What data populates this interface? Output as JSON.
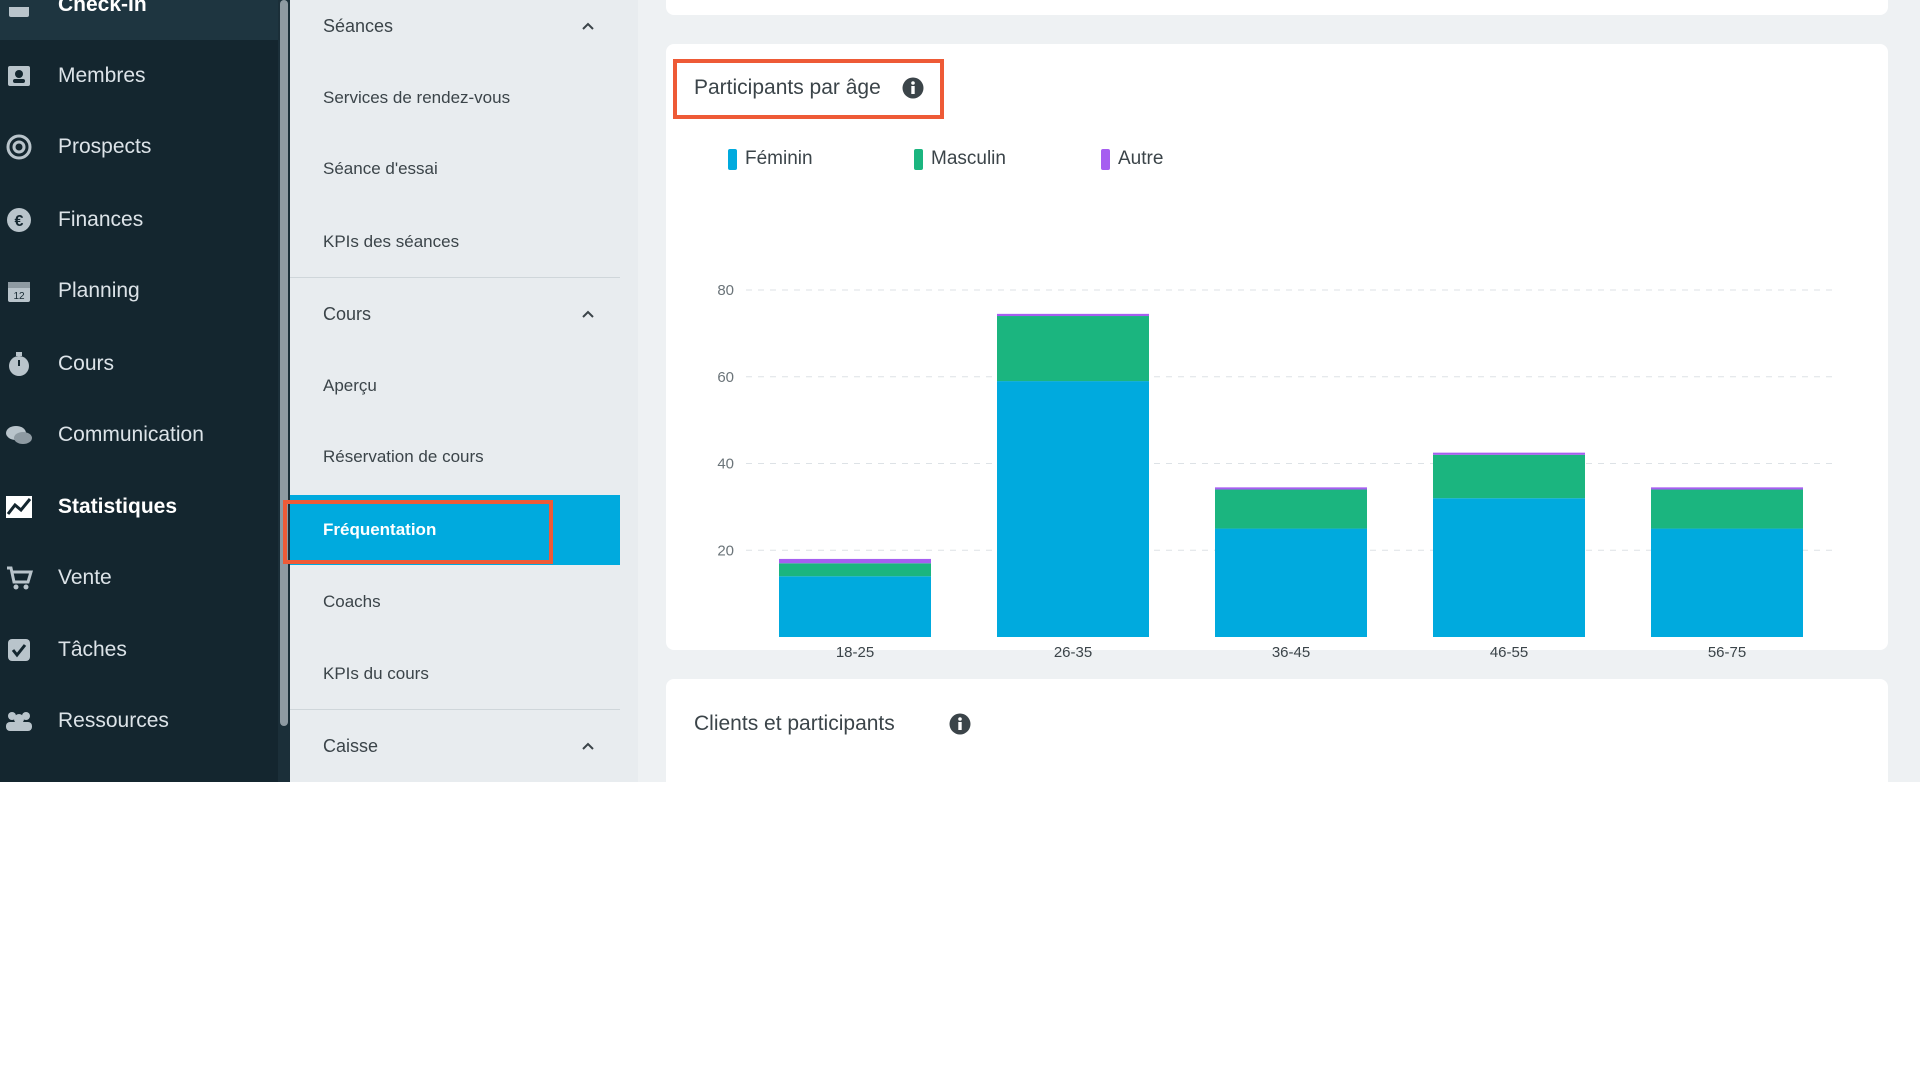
{
  "nav": {
    "items": [
      {
        "label": "Check-In",
        "icon": "checkin-icon"
      },
      {
        "label": "Membres",
        "icon": "member-card-icon"
      },
      {
        "label": "Prospects",
        "icon": "target-icon"
      },
      {
        "label": "Finances",
        "icon": "euro-icon"
      },
      {
        "label": "Planning",
        "icon": "calendar-icon"
      },
      {
        "label": "Cours",
        "icon": "stopwatch-icon"
      },
      {
        "label": "Communication",
        "icon": "chat-icon"
      },
      {
        "label": "Statistiques",
        "icon": "chart-icon"
      },
      {
        "label": "Vente",
        "icon": "cart-icon"
      },
      {
        "label": "Tâches",
        "icon": "checkbox-icon"
      },
      {
        "label": "Ressources",
        "icon": "people-icon"
      }
    ],
    "active": "Statistiques"
  },
  "submenu": {
    "seances": {
      "title": "Séances",
      "items": [
        "Services de rendez-vous",
        "Séance d'essai",
        "KPIs des séances"
      ]
    },
    "cours": {
      "title": "Cours",
      "items": [
        "Aperçu",
        "Réservation de cours",
        "Fréquentation",
        "Coachs",
        "KPIs du cours"
      ]
    },
    "caisse": {
      "title": "Caisse"
    },
    "active": "Fréquentation"
  },
  "card_age": {
    "title": "Participants par âge",
    "legend": [
      {
        "label": "Féminin",
        "color": "#00aade"
      },
      {
        "label": "Masculin",
        "color": "#1bb57f"
      },
      {
        "label": "Autre",
        "color": "#a65ef0"
      }
    ]
  },
  "card_clients": {
    "title": "Clients et participants"
  },
  "chart_data": {
    "type": "bar",
    "stacked": true,
    "categories": [
      "18-25",
      "26-35",
      "36-45",
      "46-55",
      "56-75"
    ],
    "series": [
      {
        "name": "Féminin",
        "values": [
          14,
          59,
          25,
          32,
          25
        ],
        "color": "#00aade"
      },
      {
        "name": "Masculin",
        "values": [
          3,
          15,
          9,
          10,
          9
        ],
        "color": "#1bb57f"
      },
      {
        "name": "Autre",
        "values": [
          1,
          0.5,
          0.5,
          0.5,
          0.5
        ],
        "color": "#a65ef0"
      }
    ],
    "yticks": [
      20,
      40,
      60,
      80
    ],
    "ylim": [
      0,
      80
    ],
    "grid": true
  }
}
